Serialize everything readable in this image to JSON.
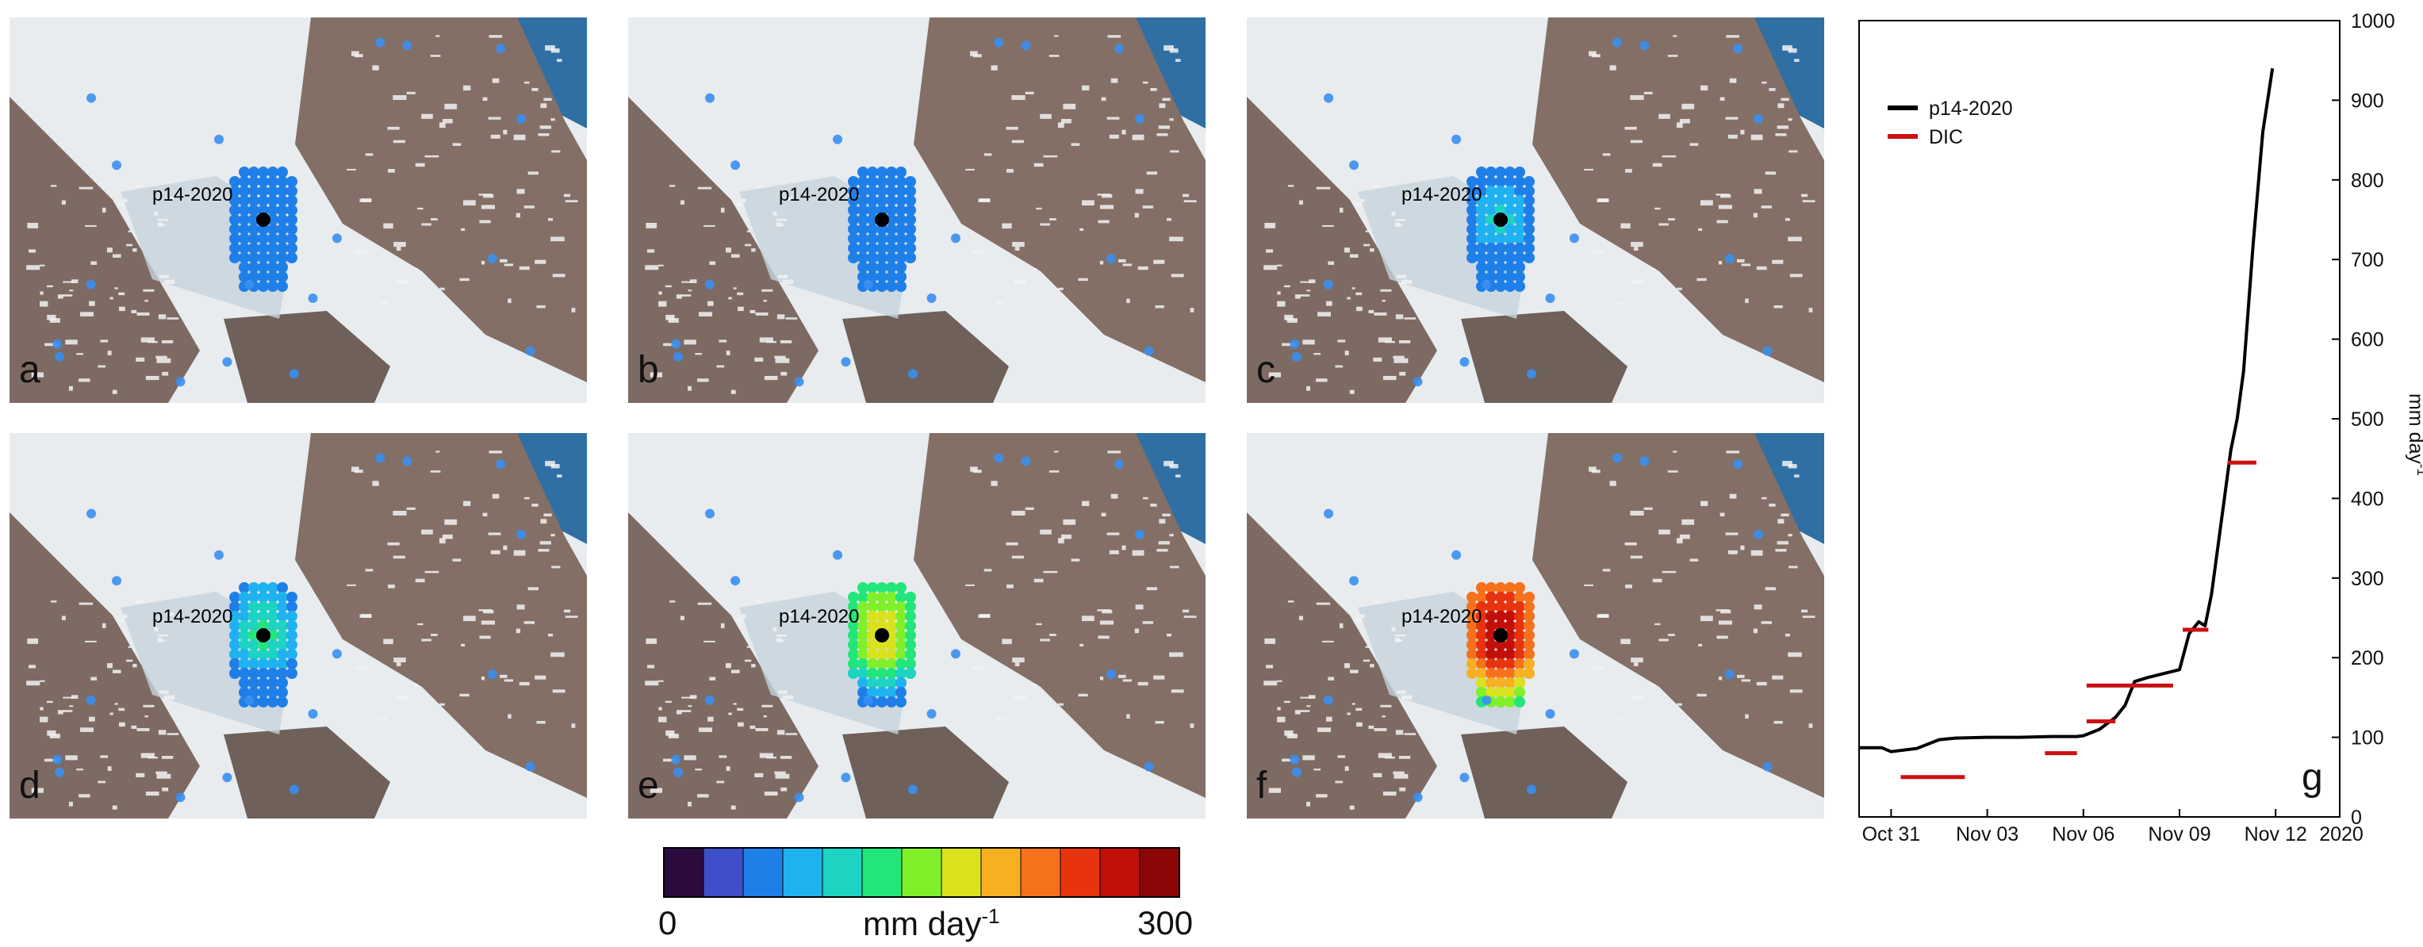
{
  "panels": [
    {
      "letter": "a",
      "point_label": "p14-2020",
      "level": 0.18
    },
    {
      "letter": "b",
      "point_label": "p14-2020",
      "level": 0.25
    },
    {
      "letter": "c",
      "point_label": "p14-2020",
      "level": 0.38
    },
    {
      "letter": "d",
      "point_label": "p14-2020",
      "level": 0.45
    },
    {
      "letter": "e",
      "point_label": "p14-2020",
      "level": 0.65
    },
    {
      "letter": "f",
      "point_label": "p14-2020",
      "level": 0.95
    }
  ],
  "colorbar": {
    "min_label": "0",
    "max_label": "300",
    "unit_label": "mm day",
    "unit_exp": "-1",
    "colors": [
      "#2b0a3d",
      "#3f4fc9",
      "#1f7fe8",
      "#1fb2f0",
      "#1dd3c2",
      "#22e67a",
      "#7ff02a",
      "#d9e21c",
      "#f6b021",
      "#f6711c",
      "#e8330f",
      "#c21008",
      "#8b0606"
    ]
  },
  "chart_data": {
    "type": "line",
    "panel_letter": "g",
    "x_ticks": [
      "Oct 31",
      "Nov 03",
      "Nov 06",
      "Nov 09",
      "Nov 12"
    ],
    "x_tick_days": [
      0,
      3,
      6,
      9,
      12
    ],
    "x_extra_label": "2020",
    "y_ticks": [
      "0",
      "100",
      "200",
      "300",
      "400",
      "500",
      "600",
      "700",
      "800",
      "900",
      "1000"
    ],
    "ylim": [
      0,
      1000
    ],
    "xlim": [
      -1,
      14
    ],
    "ylabel": "mm day",
    "ylabel_exp": "-1",
    "legend_position": "top-left",
    "series": [
      {
        "name": "p14-2020",
        "color": "#000000",
        "x_days": [
          -1,
          -0.3,
          0,
          0.8,
          1.5,
          2,
          3,
          4,
          5,
          5.8,
          6,
          6.5,
          7,
          7.3,
          7.6,
          8,
          8.5,
          9,
          9.3,
          9.6,
          9.8,
          10,
          10.2,
          10.4,
          10.6,
          10.8,
          11,
          11.3,
          11.6,
          11.9
        ],
        "y": [
          87,
          87,
          82,
          86,
          97,
          99,
          100,
          100,
          101,
          101,
          102,
          110,
          125,
          140,
          170,
          175,
          180,
          185,
          230,
          245,
          240,
          280,
          340,
          400,
          460,
          500,
          560,
          720,
          860,
          940
        ]
      }
    ],
    "dic_segments": {
      "name": "DIC",
      "color": "#cc1111",
      "segments": [
        {
          "x0": 0.3,
          "x1": 2.3,
          "y": 50
        },
        {
          "x0": 4.8,
          "x1": 5.8,
          "y": 80
        },
        {
          "x0": 6.1,
          "x1": 7.0,
          "y": 120
        },
        {
          "x0": 6.1,
          "x1": 8.8,
          "y": 165
        },
        {
          "x0": 9.1,
          "x1": 9.9,
          "y": 235
        },
        {
          "x0": 10.5,
          "x1": 11.4,
          "y": 445
        }
      ]
    }
  }
}
